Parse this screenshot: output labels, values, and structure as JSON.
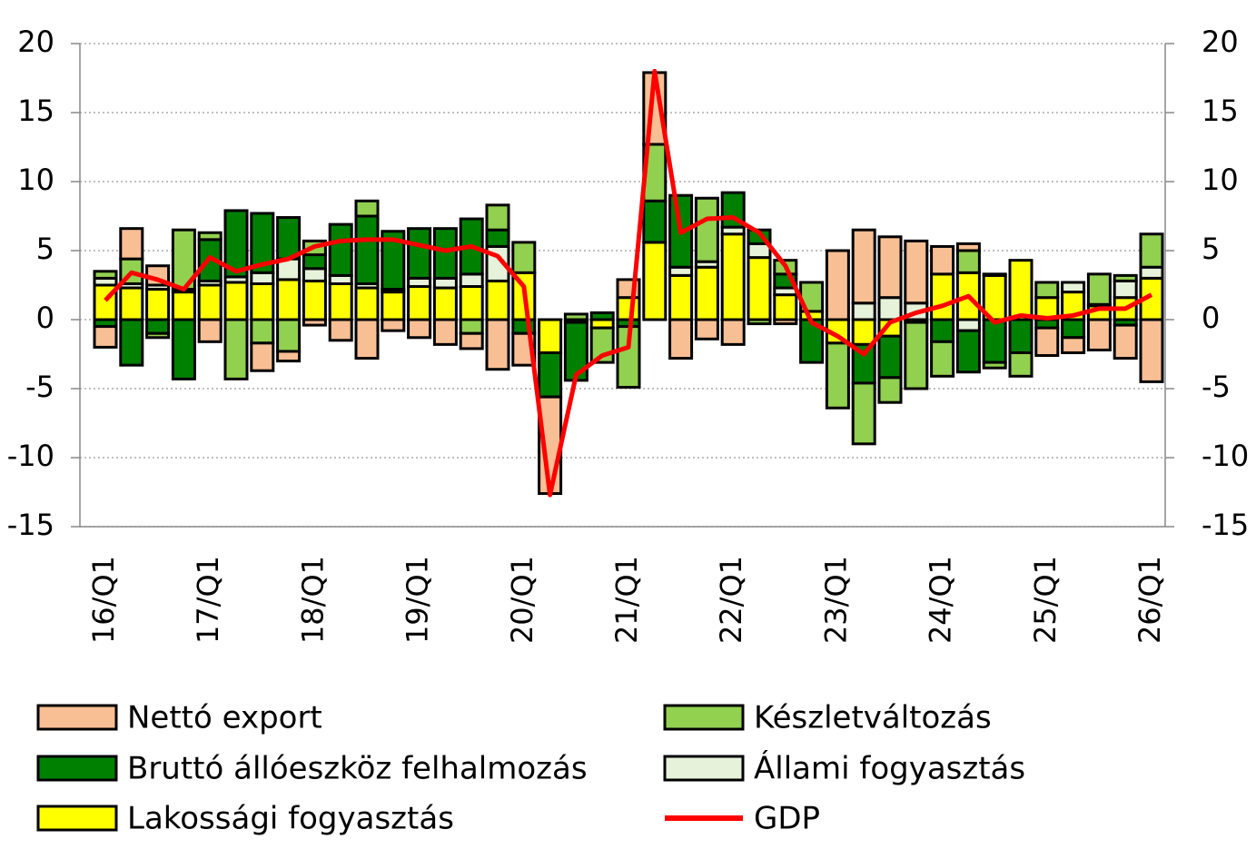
{
  "chart_data": {
    "type": "stacked-bar-line",
    "categories": [
      "16/Q1",
      null,
      null,
      null,
      "17/Q1",
      null,
      null,
      null,
      "18/Q1",
      null,
      null,
      null,
      "19/Q1",
      null,
      null,
      null,
      "20/Q1",
      null,
      null,
      null,
      "21/Q1",
      null,
      null,
      null,
      "22/Q1",
      null,
      null,
      null,
      "23/Q1",
      null,
      null,
      null,
      "24/Q1",
      null,
      null,
      null,
      "25/Q1",
      null,
      null,
      null,
      "26/Q1"
    ],
    "series": [
      {
        "name": "Nettó export",
        "color": "#f9bf94",
        "values": [
          -1.5,
          2.2,
          1.4,
          0,
          -1.6,
          0,
          -2.0,
          -0.7,
          -0.4,
          -1.5,
          -2.8,
          -0.8,
          -1.3,
          -1.8,
          -1.1,
          -3.6,
          -2.3,
          -7.0,
          0,
          0,
          1.3,
          5.2,
          -2.8,
          -1.4,
          -1.8,
          0,
          -0.3,
          0,
          5.0,
          5.3,
          4.4,
          4.5,
          2.0,
          0.5,
          0,
          0,
          -2.0,
          -1.1,
          -2.2,
          -2.4,
          -4.5
        ]
      },
      {
        "name": "Készletváltozás",
        "color": "#92d050",
        "values": [
          0.5,
          1.8,
          -0.3,
          4.3,
          0.5,
          -4.3,
          -1.7,
          -2.3,
          1.0,
          0,
          1.1,
          0,
          0,
          0,
          -1.0,
          1.8,
          2.2,
          0,
          0.4,
          -2.5,
          -4.4,
          4.1,
          0,
          4.6,
          0,
          -0.3,
          1.0,
          2.1,
          -4.7,
          -4.4,
          -1.8,
          -4.8,
          -2.5,
          1.6,
          -0.4,
          -1.7,
          1.1,
          0,
          2.2,
          0.4,
          2.4
        ]
      },
      {
        "name": "Bruttó állóeszköz felhalmozás",
        "color": "#008000",
        "values": [
          -0.5,
          -3.3,
          -1.0,
          -4.3,
          3.0,
          4.8,
          4.3,
          3.0,
          1.0,
          3.7,
          4.9,
          4.2,
          3.6,
          3.6,
          4.0,
          1.2,
          -1.0,
          -3.2,
          -4.2,
          0.5,
          -0.5,
          3.0,
          5.2,
          0,
          2.5,
          1.0,
          1.0,
          -3.1,
          0,
          -2.8,
          -3.0,
          0,
          -1.6,
          -3.0,
          -3.1,
          -2.4,
          -0.6,
          -1.3,
          0.1,
          -0.4,
          0
        ]
      },
      {
        "name": "Állami fogyasztás",
        "color": "#e6f2d9",
        "values": [
          0.5,
          0.3,
          0.3,
          0.2,
          0.3,
          0.4,
          0.8,
          1.5,
          0.9,
          0.6,
          0.3,
          0.2,
          0.6,
          0.7,
          0.9,
          2.5,
          0,
          0,
          0,
          0,
          0,
          0,
          0.6,
          0.4,
          0.5,
          1.0,
          0.5,
          0,
          0,
          1.2,
          1.6,
          1.2,
          0,
          -0.8,
          0.1,
          0,
          0,
          0.7,
          0,
          1.2,
          0.8
        ]
      },
      {
        "name": "Lakossági fogyasztás",
        "color": "#ffff00",
        "values": [
          2.5,
          2.3,
          2.2,
          2.0,
          2.5,
          2.7,
          2.6,
          2.9,
          2.8,
          2.6,
          2.3,
          2.0,
          2.4,
          2.3,
          2.4,
          2.8,
          3.4,
          -2.4,
          -0.2,
          -0.6,
          1.6,
          5.6,
          3.2,
          3.8,
          6.2,
          4.5,
          1.8,
          0.6,
          -1.7,
          -1.8,
          -1.2,
          -0.2,
          3.3,
          3.4,
          3.2,
          4.3,
          1.6,
          2.0,
          1.0,
          1.6,
          3.0
        ]
      },
      {
        "name": "GDP",
        "color": "#ff0000",
        "values": [
          1.4,
          3.4,
          2.9,
          2.2,
          4.5,
          3.5,
          4.0,
          4.4,
          5.3,
          5.7,
          5.8,
          5.8,
          5.4,
          5.0,
          5.3,
          4.6,
          2.4,
          -12.7,
          -4.0,
          -2.6,
          -2.0,
          18.0,
          6.3,
          7.3,
          7.4,
          6.3,
          3.9,
          -0.2,
          -1.2,
          -2.5,
          -0.2,
          0.5,
          1.0,
          1.7,
          -0.2,
          0.3,
          0.1,
          0.3,
          0.8,
          0.8,
          1.8
        ]
      }
    ],
    "ylim": [
      -15,
      20
    ],
    "yticks": [
      -15,
      -10,
      -5,
      0,
      5,
      10,
      15,
      20
    ],
    "y2lim": [
      -15,
      20
    ],
    "y2ticks": [
      -15,
      -10,
      -5,
      0,
      5,
      10,
      15,
      20
    ],
    "grid": true
  }
}
